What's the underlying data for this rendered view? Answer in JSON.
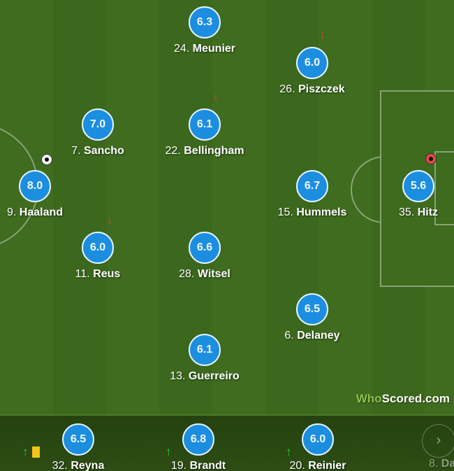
{
  "lineup": [
    {
      "num": "24.",
      "name": "Meunier",
      "rating": "6.3"
    },
    {
      "num": "26.",
      "name": "Piszczek",
      "rating": "6.0",
      "sub_off": true
    },
    {
      "num": "7.",
      "name": "Sancho",
      "rating": "7.0"
    },
    {
      "num": "22.",
      "name": "Bellingham",
      "rating": "6.1",
      "sub_off": true
    },
    {
      "num": "9.",
      "name": "Haaland",
      "rating": "8.0",
      "goal": true
    },
    {
      "num": "15.",
      "name": "Hummels",
      "rating": "6.7"
    },
    {
      "num": "35.",
      "name": "Hitz",
      "rating": "5.6",
      "own_goal": true
    },
    {
      "num": "11.",
      "name": "Reus",
      "rating": "6.0",
      "sub_off": true
    },
    {
      "num": "28.",
      "name": "Witsel",
      "rating": "6.6"
    },
    {
      "num": "6.",
      "name": "Delaney",
      "rating": "6.5"
    },
    {
      "num": "13.",
      "name": "Guerreiro",
      "rating": "6.1"
    }
  ],
  "bench": [
    {
      "num": "32.",
      "name": "Reyna",
      "rating": "6.5",
      "sub_on": true,
      "yellow_card": true
    },
    {
      "num": "19.",
      "name": "Brandt",
      "rating": "6.8",
      "sub_on": true
    },
    {
      "num": "20.",
      "name": "Reinier",
      "rating": "6.0",
      "sub_on": true
    },
    {
      "num": "8.",
      "name": "Dah",
      "rating": ""
    }
  ],
  "logo": {
    "part1": "Who",
    "part2": "Scored",
    "part3": ".com"
  },
  "icons": {
    "next": "chevron-right-icon",
    "goal": "football-icon",
    "sub_off": "arrow-down-icon",
    "sub_on": "arrow-up-icon"
  },
  "colors": {
    "rating_bg": "#1c8ee0",
    "sub_off": "#e8412e",
    "sub_on": "#2bd12b",
    "card": "#f5c518"
  }
}
